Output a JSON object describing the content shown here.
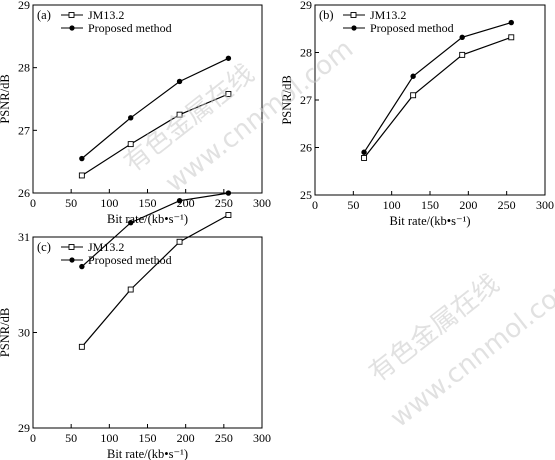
{
  "chart_data": [
    {
      "type": "line",
      "panel_label": "(a)",
      "xlabel": "Bit rate/(kb•s⁻¹)",
      "ylabel": "PSNR/dB",
      "xlim": [
        0,
        300
      ],
      "ylim": [
        26,
        29
      ],
      "xticks": [
        0,
        50,
        100,
        150,
        200,
        250,
        300
      ],
      "yticks": [
        26,
        27,
        28,
        29
      ],
      "legend_position": "top-left",
      "grid": false,
      "series": [
        {
          "name": "JM13.2",
          "marker": "square-open",
          "x": [
            64,
            128,
            192,
            256
          ],
          "y": [
            26.28,
            26.78,
            27.25,
            27.58
          ]
        },
        {
          "name": "Proposed method",
          "marker": "circle-filled",
          "x": [
            64,
            128,
            192,
            256
          ],
          "y": [
            26.55,
            27.2,
            27.78,
            28.15
          ]
        }
      ]
    },
    {
      "type": "line",
      "panel_label": "(b)",
      "xlabel": "Bit rate/(kb•s⁻¹)",
      "ylabel": "PSNR/dB",
      "xlim": [
        0,
        300
      ],
      "ylim": [
        25,
        29
      ],
      "xticks": [
        0,
        50,
        100,
        150,
        200,
        250,
        300
      ],
      "yticks": [
        25,
        26,
        27,
        28,
        29
      ],
      "legend_position": "top-left",
      "grid": false,
      "series": [
        {
          "name": "JM13.2",
          "marker": "square-open",
          "x": [
            64,
            128,
            192,
            256
          ],
          "y": [
            25.78,
            27.1,
            27.95,
            28.32
          ]
        },
        {
          "name": "Proposed method",
          "marker": "circle-filled",
          "x": [
            64,
            128,
            192,
            256
          ],
          "y": [
            25.9,
            27.5,
            28.32,
            28.63
          ]
        }
      ]
    },
    {
      "type": "line",
      "panel_label": "(c)",
      "xlabel": "Bit rate/(kb•s⁻¹)",
      "ylabel": "PSNR/dB",
      "xlim": [
        0,
        300
      ],
      "ylim": [
        29,
        31
      ],
      "xticks": [
        0,
        50,
        100,
        150,
        200,
        250,
        300
      ],
      "yticks": [
        29,
        30,
        31
      ],
      "legend_position": "top-left",
      "grid": false,
      "series": [
        {
          "name": "JM13.2",
          "marker": "square-open",
          "x": [
            64,
            128,
            192,
            256
          ],
          "y": [
            29.85,
            30.45,
            30.95,
            31.23
          ]
        },
        {
          "name": "Proposed method",
          "marker": "circle-filled",
          "x": [
            64,
            128,
            192,
            256
          ],
          "y": [
            30.69,
            31.15,
            31.38,
            31.46
          ]
        }
      ]
    }
  ],
  "watermark": {
    "line1": "有色金属在线",
    "line2": "www.cnnmol.com"
  }
}
